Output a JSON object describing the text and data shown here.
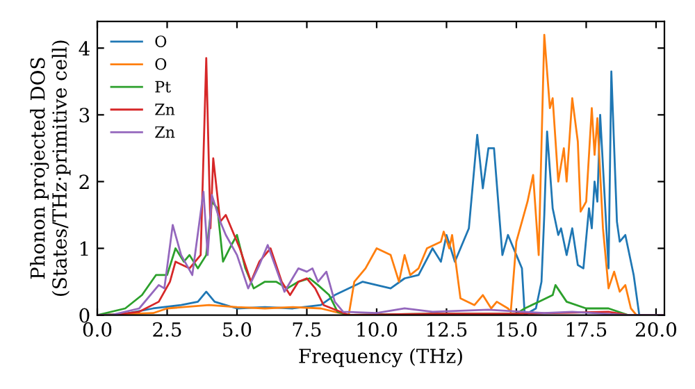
{
  "chart_data": {
    "type": "line",
    "xlabel": "Frequency (THz)",
    "ylabel": "Phonon projected DOS\n(States/THz·primitive cell)",
    "xlim": [
      0,
      20.3
    ],
    "ylim": [
      0,
      4.4
    ],
    "xticks": [
      {
        "value": 0,
        "label": "0.0"
      },
      2.5,
      {
        "value": 5,
        "label": "5.0"
      },
      7.5,
      {
        "value": 10,
        "label": "10.0"
      },
      12.5,
      {
        "value": 15,
        "label": "15.0"
      },
      17.5,
      {
        "value": 20,
        "label": "20.0"
      }
    ],
    "yticks": [
      0,
      1,
      2,
      3,
      4
    ],
    "legend": "top left",
    "grid": false,
    "series": [
      {
        "name": "O",
        "color": "#1f77b4",
        "x": [
          0,
          1,
          2,
          3,
          3.6,
          3.9,
          4.2,
          5,
          6,
          7,
          8,
          8.5,
          9.5,
          10,
          10.5,
          11,
          11.5,
          12,
          12.3,
          12.5,
          12.8,
          13,
          13.3,
          13.6,
          13.8,
          14,
          14.2,
          14.5,
          14.7,
          15,
          15.2,
          15.3,
          15.5,
          15.7,
          15.9,
          16.0,
          16.1,
          16.3,
          16.5,
          16.6,
          16.8,
          17.0,
          17.2,
          17.4,
          17.6,
          17.7,
          17.8,
          17.9,
          18.0,
          18.3,
          18.4,
          18.6,
          18.7,
          18.9,
          19.0,
          19.2,
          19.4,
          20.3
        ],
        "values": [
          0,
          0.02,
          0.1,
          0.15,
          0.2,
          0.35,
          0.2,
          0.1,
          0.12,
          0.1,
          0.15,
          0.3,
          0.5,
          0.45,
          0.4,
          0.55,
          0.6,
          1.0,
          0.8,
          1.2,
          0.8,
          1.0,
          1.3,
          2.7,
          1.9,
          2.5,
          2.5,
          0.9,
          1.2,
          0.9,
          0.7,
          0,
          0.05,
          0.1,
          0.5,
          1.5,
          2.75,
          1.6,
          1.2,
          1.3,
          0.9,
          1.3,
          0.75,
          0.7,
          1.6,
          1.3,
          2.0,
          1.7,
          3.0,
          0.7,
          3.65,
          1.4,
          1.1,
          1.2,
          1.0,
          0.6,
          0,
          0
        ]
      },
      {
        "name": "O",
        "color": "#ff7f0e",
        "x": [
          0,
          2,
          2.5,
          4,
          5,
          6,
          7,
          8,
          8.5,
          9,
          9.2,
          9.6,
          10,
          10.5,
          10.8,
          11,
          11.2,
          11.5,
          11.8,
          12.3,
          12.4,
          12.6,
          12.7,
          13,
          13.5,
          13.8,
          14.1,
          14.3,
          14.7,
          14.8,
          15.0,
          15.4,
          15.6,
          15.8,
          16.0,
          16.2,
          16.3,
          16.5,
          16.7,
          16.8,
          17.0,
          17.2,
          17.3,
          17.5,
          17.7,
          17.8,
          17.9,
          18.1,
          18.3,
          18.5,
          18.7,
          18.9,
          19.1,
          19.3,
          20.3
        ],
        "values": [
          0,
          0.03,
          0.1,
          0.15,
          0.12,
          0.1,
          0.12,
          0.1,
          0.05,
          0,
          0.5,
          0.7,
          1.0,
          0.9,
          0.5,
          0.9,
          0.6,
          0.7,
          1.0,
          1.1,
          1.25,
          1.0,
          1.2,
          0.25,
          0.15,
          0.3,
          0.1,
          0.2,
          0.1,
          0.05,
          1.1,
          1.7,
          2.1,
          0.9,
          4.2,
          3.1,
          3.25,
          2.0,
          2.5,
          2.0,
          3.25,
          2.6,
          1.55,
          1.7,
          3.1,
          2.4,
          2.95,
          1.3,
          0.4,
          0.65,
          0.35,
          0.45,
          0.1,
          0,
          0
        ]
      },
      {
        "name": "Pt",
        "color": "#2ca02c",
        "x": [
          0,
          1,
          1.6,
          2.1,
          2.5,
          2.8,
          3.1,
          3.3,
          3.6,
          3.9,
          4.1,
          4.3,
          4.5,
          4.8,
          5.0,
          5.3,
          5.6,
          6.0,
          6.4,
          6.8,
          7.2,
          7.6,
          7.9,
          8.3,
          8.6,
          9,
          12,
          15,
          15.3,
          15.8,
          16.3,
          16.4,
          16.8,
          17.5,
          18.3,
          19,
          20.3
        ],
        "values": [
          0,
          0.1,
          0.3,
          0.6,
          0.6,
          1.0,
          0.8,
          0.9,
          0.7,
          0.9,
          1.7,
          1.6,
          0.8,
          1.05,
          1.2,
          0.7,
          0.4,
          0.5,
          0.5,
          0.4,
          0.5,
          0.55,
          0.45,
          0.3,
          0.05,
          0,
          0.02,
          0.02,
          0.1,
          0.2,
          0.3,
          0.45,
          0.2,
          0.1,
          0.1,
          0,
          0
        ]
      },
      {
        "name": "Zn",
        "color": "#d62728",
        "x": [
          0,
          0.5,
          1.5,
          2.2,
          2.6,
          2.8,
          3.3,
          3.7,
          3.9,
          4.05,
          4.15,
          4.4,
          4.6,
          5.1,
          5.5,
          5.8,
          6.2,
          6.6,
          6.9,
          7.2,
          7.5,
          7.8,
          8.1,
          8.4,
          9,
          12,
          15,
          18.3,
          19,
          20.3
        ],
        "values": [
          0,
          0,
          0.05,
          0.2,
          0.5,
          0.8,
          0.7,
          0.9,
          3.85,
          1.3,
          2.35,
          1.4,
          1.5,
          1.0,
          0.5,
          0.8,
          1.0,
          0.5,
          0.3,
          0.5,
          0.55,
          0.4,
          0.15,
          0.1,
          0,
          0.02,
          0.02,
          0.05,
          0,
          0
        ]
      },
      {
        "name": "Zn",
        "color": "#9467bd",
        "x": [
          0,
          0.5,
          1.5,
          2.2,
          2.4,
          2.7,
          3.0,
          3.4,
          3.8,
          3.95,
          4.1,
          4.4,
          4.6,
          5.0,
          5.4,
          5.8,
          6.1,
          6.4,
          6.7,
          7.2,
          7.5,
          7.7,
          7.9,
          8.2,
          8.5,
          8.8,
          10,
          11,
          12,
          14,
          16,
          17,
          19,
          20.3
        ],
        "values": [
          0,
          0,
          0.1,
          0.45,
          0.4,
          1.35,
          0.9,
          0.6,
          1.85,
          0.9,
          1.8,
          1.4,
          1.2,
          0.9,
          0.4,
          0.75,
          1.05,
          0.7,
          0.35,
          0.7,
          0.65,
          0.7,
          0.5,
          0.65,
          0.2,
          0.05,
          0.03,
          0.1,
          0.05,
          0.08,
          0.03,
          0.05,
          0,
          0
        ]
      }
    ]
  }
}
